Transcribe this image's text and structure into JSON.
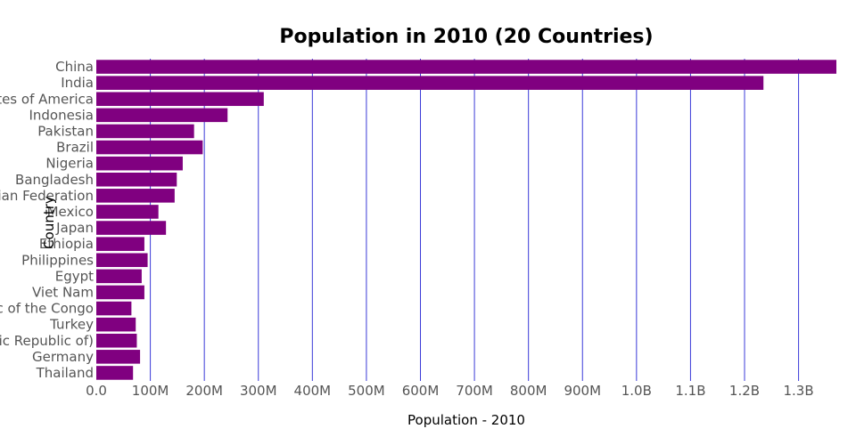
{
  "chart_data": {
    "type": "bar",
    "orientation": "horizontal",
    "title": "Population in 2010 (20 Countries)",
    "xlabel": "Population - 2010",
    "ylabel": "Country",
    "xlim": [
      0,
      1370000000
    ],
    "x_ticks": [
      {
        "value": 0,
        "label": "0.0"
      },
      {
        "value": 100000000,
        "label": "100M"
      },
      {
        "value": 200000000,
        "label": "200M"
      },
      {
        "value": 300000000,
        "label": "300M"
      },
      {
        "value": 400000000,
        "label": "400M"
      },
      {
        "value": 500000000,
        "label": "500M"
      },
      {
        "value": 600000000,
        "label": "600M"
      },
      {
        "value": 700000000,
        "label": "700M"
      },
      {
        "value": 800000000,
        "label": "800M"
      },
      {
        "value": 900000000,
        "label": "900M"
      },
      {
        "value": 1000000000,
        "label": "1.0B"
      },
      {
        "value": 1100000000,
        "label": "1.1B"
      },
      {
        "value": 1200000000,
        "label": "1.2B"
      },
      {
        "value": 1300000000,
        "label": "1.3B"
      }
    ],
    "categories": [
      "China",
      "India",
      "United States of America",
      "Indonesia",
      "Pakistan",
      "Brazil",
      "Nigeria",
      "Bangladesh",
      "Russian Federation",
      "Mexico",
      "Japan",
      "Ethiopia",
      "Philippines",
      "Egypt",
      "Viet Nam",
      "Democratic Republic of the Congo",
      "Turkey",
      "Iran (Islamic Republic of)",
      "Germany",
      "Thailand"
    ],
    "values": [
      1370000000,
      1235000000,
      310000000,
      243000000,
      181000000,
      197000000,
      160000000,
      149000000,
      145000000,
      115000000,
      129000000,
      89000000,
      95000000,
      84000000,
      89000000,
      65000000,
      73000000,
      75000000,
      81000000,
      68000000
    ],
    "grid": true,
    "colors": {
      "bar": "#800080",
      "grid": "#3a3ad8",
      "tick": "#555555",
      "text": "#000000"
    }
  }
}
